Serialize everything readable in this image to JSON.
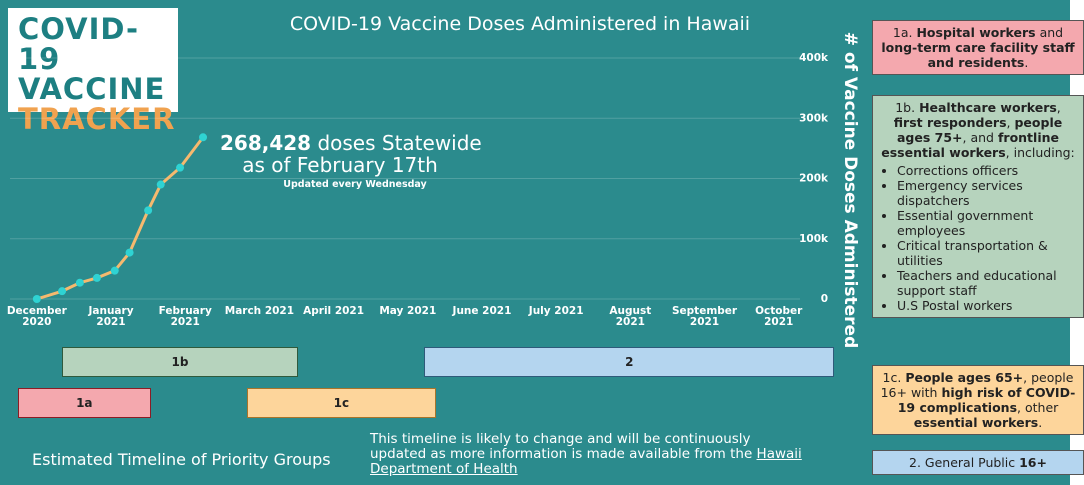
{
  "logo": [
    "COVID-19",
    "VACCINE",
    "TRACKER"
  ],
  "chart_data": {
    "type": "line",
    "title": "COVID-19 Vaccine Doses Administered in Hawaii",
    "y_label": "# of Vaccine Doses Administered",
    "x": [
      0,
      0.34,
      0.58,
      0.81,
      1.05,
      1.25,
      1.5,
      1.67,
      1.93,
      2.24
    ],
    "values": [
      0,
      13000,
      27000,
      35000,
      47000,
      77000,
      147000,
      190000,
      218000,
      268428
    ],
    "value_labels": [
      null,
      null,
      null,
      null,
      null,
      null,
      null,
      null,
      null,
      "268,428"
    ],
    "line_color": "#f6b96e",
    "marker_color": "#2fd3d3",
    "xlim": [
      -0.2,
      10.3
    ],
    "xticks": [
      {
        "value": 0,
        "label": "December 2020"
      },
      {
        "value": 1,
        "label": "January 2021"
      },
      {
        "value": 2,
        "label": "February 2021"
      },
      {
        "value": 3,
        "label": "March 2021"
      },
      {
        "value": 4,
        "label": "April 2021"
      },
      {
        "value": 5,
        "label": "May 2021"
      },
      {
        "value": 6,
        "label": "June 2021"
      },
      {
        "value": 7,
        "label": "July 2021"
      },
      {
        "value": 8,
        "label": "August 2021"
      },
      {
        "value": 9,
        "label": "September 2021"
      },
      {
        "value": 10,
        "label": "October 2021"
      }
    ],
    "ylim": [
      0,
      400000
    ],
    "yticks": [
      0,
      {
        "value": 100000,
        "label": "100k"
      },
      {
        "value": 200000,
        "label": "200k"
      },
      {
        "value": 300000,
        "label": "300k"
      },
      {
        "value": 400000,
        "label": "400k"
      }
    ],
    "grid": true,
    "annotation": {
      "text": " doses Statewide",
      "date": "as of February 17th",
      "note": "Updated every Wednesday"
    }
  },
  "timeline": {
    "title": "Estimated Timeline of Priority Groups",
    "note": "This timeline is likely to change and will be continuously updated as more information is made available from the ",
    "link": "Hawaii Department of Health",
    "phases": [
      {
        "label": "1b",
        "start": 0.34,
        "end": 3.52,
        "row": 0,
        "color": "#b6d3bd",
        "border": "#2f5a3c"
      },
      {
        "label": "2",
        "start": 5.22,
        "end": 10.75,
        "row": 0,
        "color": "#b4d5ef",
        "border": "#2f5a7a"
      },
      {
        "label": "1a",
        "start": -0.26,
        "end": 1.54,
        "row": 1,
        "color": "#f4a8ae",
        "border": "#8c1c25"
      },
      {
        "label": "1c",
        "start": 2.83,
        "end": 5.38,
        "row": 1,
        "color": "#fdd59b",
        "border": "#a8742a"
      }
    ]
  },
  "groups": [
    {
      "color": "#f4a8ae",
      "segments": [
        {
          "text": "1a. "
        },
        {
          "text": "Hospital workers",
          "bold": true
        },
        {
          "text": " and "
        },
        {
          "text": "long-term care facility staff and residents",
          "bold": true
        },
        {
          "text": "."
        }
      ]
    },
    {
      "color": "#b6d3bd",
      "segments": [
        {
          "text": "1b. "
        },
        {
          "text": "Healthcare workers",
          "bold": true
        },
        {
          "text": ", "
        },
        {
          "text": "first responders",
          "bold": true
        },
        {
          "text": ", "
        },
        {
          "text": "people ages 75+",
          "bold": true
        },
        {
          "text": ", and "
        },
        {
          "text": "frontline essential workers",
          "bold": true
        },
        {
          "text": ", including:"
        }
      ],
      "items": [
        "Corrections officers",
        "Emergency services dispatchers",
        "Essential government employees",
        "Critical transportation & utilities",
        "Teachers and educational support staff",
        "U.S Postal workers"
      ]
    },
    {
      "color": "#fdd59b",
      "segments": [
        {
          "text": "1c. "
        },
        {
          "text": "People ages 65+",
          "bold": true
        },
        {
          "text": ", people 16+ with "
        },
        {
          "text": "high risk of COVID-19 complications",
          "bold": true
        },
        {
          "text": ", other "
        },
        {
          "text": "essential workers",
          "bold": true
        },
        {
          "text": "."
        }
      ]
    },
    {
      "color": "#b4d5ef",
      "segments": [
        {
          "text": "2. General Public "
        },
        {
          "text": "16+",
          "bold": true
        }
      ]
    }
  ]
}
